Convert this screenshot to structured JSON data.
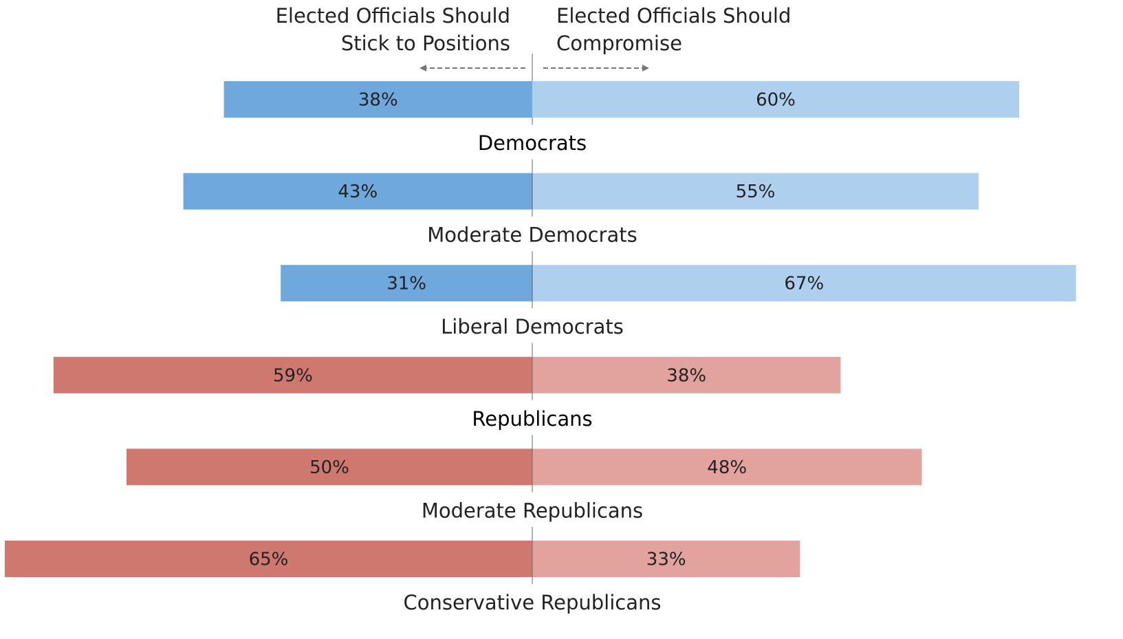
{
  "chart_data": {
    "type": "bar",
    "orientation": "horizontal",
    "layout": "diverging",
    "header": {
      "left_lines": [
        "Elected Officials Should",
        "Stick to Positions"
      ],
      "right_lines": [
        "Elected Officials Should",
        "Compromise"
      ]
    },
    "categories": [
      "Democrats",
      "Moderate Democrats",
      "Liberal Democrats",
      "Republicans",
      "Moderate Republicans",
      "Conservative Republicans"
    ],
    "category_bold": [
      true,
      false,
      false,
      true,
      false,
      false
    ],
    "series": [
      {
        "key": "stick",
        "side": "left",
        "values": [
          38,
          43,
          31,
          59,
          50,
          65
        ],
        "labels": [
          "38%",
          "43%",
          "31%",
          "59%",
          "50%",
          "65%"
        ],
        "colors": [
          "#6fa8dc",
          "#6fa8dc",
          "#6fa8dc",
          "#cf7870",
          "#cf7870",
          "#cf7870"
        ]
      },
      {
        "key": "compromise",
        "side": "right",
        "values": [
          60,
          55,
          67,
          38,
          48,
          33
        ],
        "labels": [
          "60%",
          "55%",
          "67%",
          "38%",
          "48%",
          "33%"
        ],
        "colors": [
          "#afcfee",
          "#afcfee",
          "#afcfee",
          "#e2a29d",
          "#e2a29d",
          "#e2a29d"
        ]
      }
    ],
    "colors": {
      "axis_line": "#666666",
      "arrow": "#777777",
      "text": "#222222"
    }
  }
}
